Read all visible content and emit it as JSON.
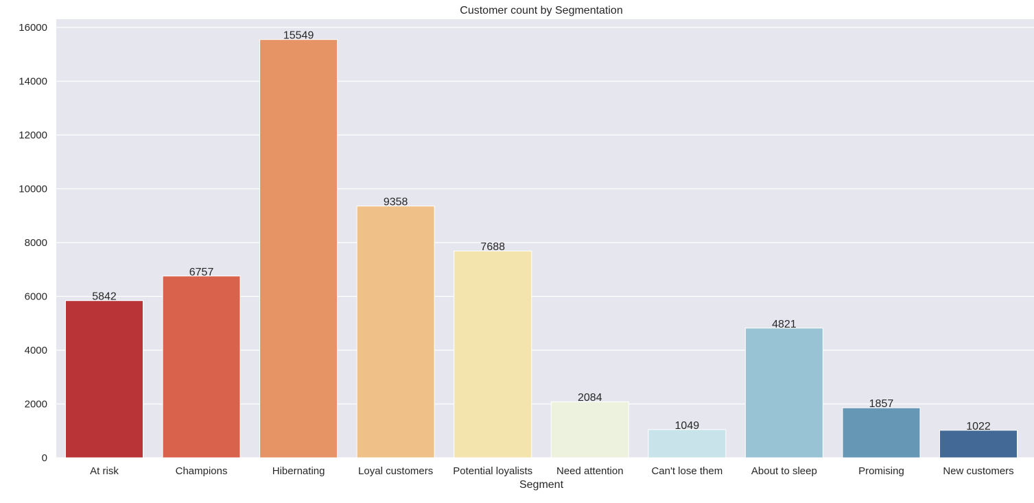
{
  "chart_data": {
    "type": "bar",
    "title": "Customer count by Segmentation",
    "xlabel": "Segment",
    "ylabel": "",
    "ylim": [
      0,
      16000
    ],
    "yticks": [
      0,
      2000,
      4000,
      6000,
      8000,
      10000,
      12000,
      14000,
      16000
    ],
    "grid": true,
    "background": "#e6e6ef",
    "categories": [
      "At risk",
      "Champions",
      "Hibernating",
      "Loyal customers",
      "Potential loyalists",
      "Need attention",
      "Can't lose them",
      "About to sleep",
      "Promising",
      "New customers"
    ],
    "values": [
      5842,
      6757,
      15549,
      9358,
      7688,
      2084,
      1049,
      4821,
      1857,
      1022
    ],
    "colors": [
      "#b93436",
      "#d9624d",
      "#e69365",
      "#efc189",
      "#f3e4ae",
      "#ecf2de",
      "#c8e4ea",
      "#98c3d4",
      "#6697b4",
      "#436a97"
    ]
  }
}
